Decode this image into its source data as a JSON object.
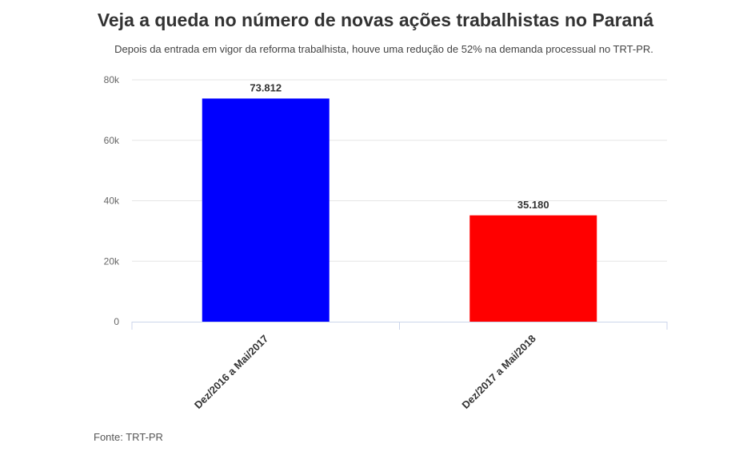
{
  "header": {
    "title": "Veja a queda no número de novas ações trabalhistas no Paraná",
    "subtitle": "Depois da entrada em vigor da reforma trabalhista, houve uma redução de 52% na demanda processual no TRT-PR."
  },
  "footer": {
    "source": "Fonte: TRT-PR"
  },
  "chart_data": {
    "type": "bar",
    "categories": [
      "Dez/2016 a Mai/2017",
      "Dez/2017 a Mai/2018"
    ],
    "values": [
      73812,
      35180
    ],
    "value_labels": [
      "73.812",
      "35.180"
    ],
    "colors": [
      "#0000ff",
      "#ff0000"
    ],
    "title": "Veja a queda no número de novas ações trabalhistas no Paraná",
    "subtitle": "Depois da entrada em vigor da reforma trabalhista, houve uma redução de 52% na demanda processual no TRT-PR.",
    "xlabel": "",
    "ylabel": "",
    "ylim": [
      0,
      80000
    ],
    "y_ticks": [
      0,
      20000,
      40000,
      60000,
      80000
    ],
    "y_tick_labels": [
      "0",
      "20k",
      "40k",
      "60k",
      "80k"
    ],
    "grid": true,
    "legend": "none"
  }
}
